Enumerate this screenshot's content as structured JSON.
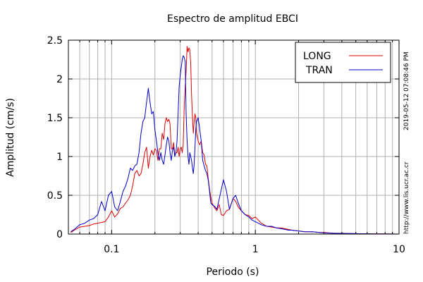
{
  "chart_data": {
    "type": "line",
    "title": "Espectro de amplitud EBCI",
    "xlabel": "Periodo (s)",
    "ylabel": "Amplitud (cm/s)",
    "xscale": "log",
    "xlim": [
      0.05,
      10
    ],
    "ylim": [
      0,
      2.5
    ],
    "x_ticks": [
      {
        "value": 0.1,
        "label": "0.1"
      },
      {
        "value": 1,
        "label": "1"
      },
      {
        "value": 10,
        "label": "10"
      }
    ],
    "y_ticks": [
      {
        "value": 0,
        "label": "0"
      },
      {
        "value": 0.5,
        "label": "0.5"
      },
      {
        "value": 1,
        "label": "1"
      },
      {
        "value": 1.5,
        "label": "1.5"
      },
      {
        "value": 2,
        "label": "2"
      },
      {
        "value": 2.5,
        "label": "2.5"
      }
    ],
    "grid": true,
    "legend_position": "top-right",
    "series": [
      {
        "name": "LONG",
        "color": "#dd0000",
        "x": [
          0.052,
          0.055,
          0.06,
          0.065,
          0.07,
          0.075,
          0.08,
          0.085,
          0.09,
          0.095,
          0.1,
          0.105,
          0.11,
          0.115,
          0.12,
          0.125,
          0.13,
          0.135,
          0.14,
          0.145,
          0.15,
          0.155,
          0.16,
          0.165,
          0.17,
          0.175,
          0.18,
          0.185,
          0.19,
          0.195,
          0.2,
          0.205,
          0.21,
          0.215,
          0.22,
          0.225,
          0.23,
          0.235,
          0.24,
          0.245,
          0.25,
          0.255,
          0.26,
          0.265,
          0.27,
          0.275,
          0.28,
          0.285,
          0.29,
          0.295,
          0.3,
          0.305,
          0.31,
          0.315,
          0.32,
          0.325,
          0.33,
          0.335,
          0.34,
          0.345,
          0.35,
          0.355,
          0.36,
          0.365,
          0.37,
          0.375,
          0.38,
          0.385,
          0.39,
          0.4,
          0.41,
          0.42,
          0.43,
          0.44,
          0.45,
          0.46,
          0.47,
          0.48,
          0.49,
          0.5,
          0.52,
          0.54,
          0.56,
          0.58,
          0.6,
          0.63,
          0.66,
          0.7,
          0.73,
          0.76,
          0.8,
          0.85,
          0.9,
          0.95,
          1.0,
          1.05,
          1.1,
          1.2,
          1.3,
          1.4,
          1.5,
          1.6,
          1.7,
          1.8,
          2.0,
          2.2,
          2.5,
          2.8,
          3.0,
          3.5,
          4.0,
          5.0,
          6.0,
          7.0,
          8.0,
          10.0
        ],
        "values": [
          0.02,
          0.05,
          0.09,
          0.1,
          0.11,
          0.13,
          0.14,
          0.15,
          0.16,
          0.22,
          0.3,
          0.22,
          0.26,
          0.33,
          0.35,
          0.4,
          0.44,
          0.5,
          0.62,
          0.78,
          0.82,
          0.75,
          0.78,
          0.9,
          1.05,
          1.12,
          0.85,
          1.0,
          1.08,
          1.02,
          1.1,
          1.08,
          0.95,
          1.1,
          1.1,
          1.3,
          1.22,
          1.42,
          1.5,
          1.45,
          1.48,
          1.42,
          1.1,
          1.1,
          1.18,
          1.02,
          1.05,
          1.05,
          1.12,
          1.0,
          1.1,
          1.12,
          1.05,
          1.15,
          1.65,
          1.9,
          2.1,
          2.42,
          2.35,
          2.4,
          2.38,
          2.2,
          1.8,
          1.5,
          1.3,
          1.45,
          1.55,
          1.5,
          1.3,
          1.2,
          1.15,
          1.2,
          1.05,
          1.02,
          0.9,
          0.88,
          0.72,
          0.58,
          0.48,
          0.4,
          0.34,
          0.3,
          0.38,
          0.25,
          0.24,
          0.3,
          0.32,
          0.46,
          0.42,
          0.35,
          0.3,
          0.25,
          0.24,
          0.2,
          0.22,
          0.18,
          0.14,
          0.1,
          0.09,
          0.08,
          0.08,
          0.07,
          0.06,
          0.05,
          0.04,
          0.03,
          0.03,
          0.02,
          0.02,
          0.01,
          0.01,
          0.005,
          0.004,
          0.003,
          0.002,
          0.0
        ]
      },
      {
        "name": "TRAN",
        "color": "#0000cc",
        "x": [
          0.052,
          0.055,
          0.06,
          0.065,
          0.07,
          0.075,
          0.08,
          0.085,
          0.09,
          0.095,
          0.1,
          0.105,
          0.11,
          0.115,
          0.12,
          0.125,
          0.13,
          0.135,
          0.14,
          0.145,
          0.15,
          0.155,
          0.16,
          0.165,
          0.17,
          0.175,
          0.18,
          0.185,
          0.19,
          0.195,
          0.2,
          0.205,
          0.21,
          0.215,
          0.22,
          0.225,
          0.23,
          0.235,
          0.24,
          0.245,
          0.25,
          0.255,
          0.26,
          0.265,
          0.27,
          0.275,
          0.28,
          0.285,
          0.29,
          0.295,
          0.3,
          0.305,
          0.31,
          0.315,
          0.32,
          0.325,
          0.33,
          0.335,
          0.34,
          0.345,
          0.35,
          0.355,
          0.36,
          0.365,
          0.37,
          0.375,
          0.38,
          0.385,
          0.39,
          0.4,
          0.41,
          0.42,
          0.43,
          0.44,
          0.45,
          0.46,
          0.47,
          0.48,
          0.49,
          0.5,
          0.52,
          0.54,
          0.56,
          0.58,
          0.6,
          0.63,
          0.66,
          0.7,
          0.73,
          0.76,
          0.8,
          0.85,
          0.9,
          0.95,
          1.0,
          1.05,
          1.1,
          1.2,
          1.3,
          1.4,
          1.5,
          1.6,
          1.7,
          1.8,
          2.0,
          2.2,
          2.5,
          2.8,
          3.0,
          3.5,
          4.0,
          5.0,
          6.0,
          7.0,
          8.0,
          10.0
        ],
        "values": [
          0.03,
          0.06,
          0.12,
          0.14,
          0.18,
          0.2,
          0.25,
          0.42,
          0.3,
          0.5,
          0.55,
          0.35,
          0.3,
          0.42,
          0.55,
          0.62,
          0.72,
          0.85,
          0.82,
          0.88,
          0.9,
          1.05,
          1.3,
          1.45,
          1.5,
          1.7,
          1.88,
          1.7,
          1.55,
          1.58,
          1.35,
          1.2,
          1.05,
          0.95,
          1.05,
          0.95,
          0.9,
          1.02,
          1.15,
          1.25,
          1.2,
          1.05,
          0.95,
          1.08,
          1.12,
          1.0,
          1.05,
          1.2,
          1.55,
          1.9,
          2.05,
          2.15,
          2.25,
          2.3,
          2.28,
          2.22,
          1.55,
          1.2,
          1.0,
          0.9,
          1.05,
          1.0,
          0.95,
          0.85,
          0.78,
          0.9,
          1.1,
          1.35,
          1.45,
          1.5,
          1.35,
          1.2,
          0.95,
          0.88,
          0.82,
          0.78,
          0.7,
          0.55,
          0.4,
          0.38,
          0.36,
          0.32,
          0.45,
          0.58,
          0.7,
          0.55,
          0.32,
          0.46,
          0.5,
          0.4,
          0.3,
          0.25,
          0.22,
          0.18,
          0.16,
          0.14,
          0.12,
          0.1,
          0.1,
          0.08,
          0.07,
          0.06,
          0.05,
          0.05,
          0.04,
          0.03,
          0.03,
          0.02,
          0.015,
          0.01,
          0.008,
          0.005,
          0.004,
          0.003,
          0.002,
          0.0
        ]
      }
    ],
    "annotations": {
      "timestamp": "2019-05-12 07:08:46 PM",
      "source_url": "http://www.lis.ucr.ac.cr"
    }
  }
}
